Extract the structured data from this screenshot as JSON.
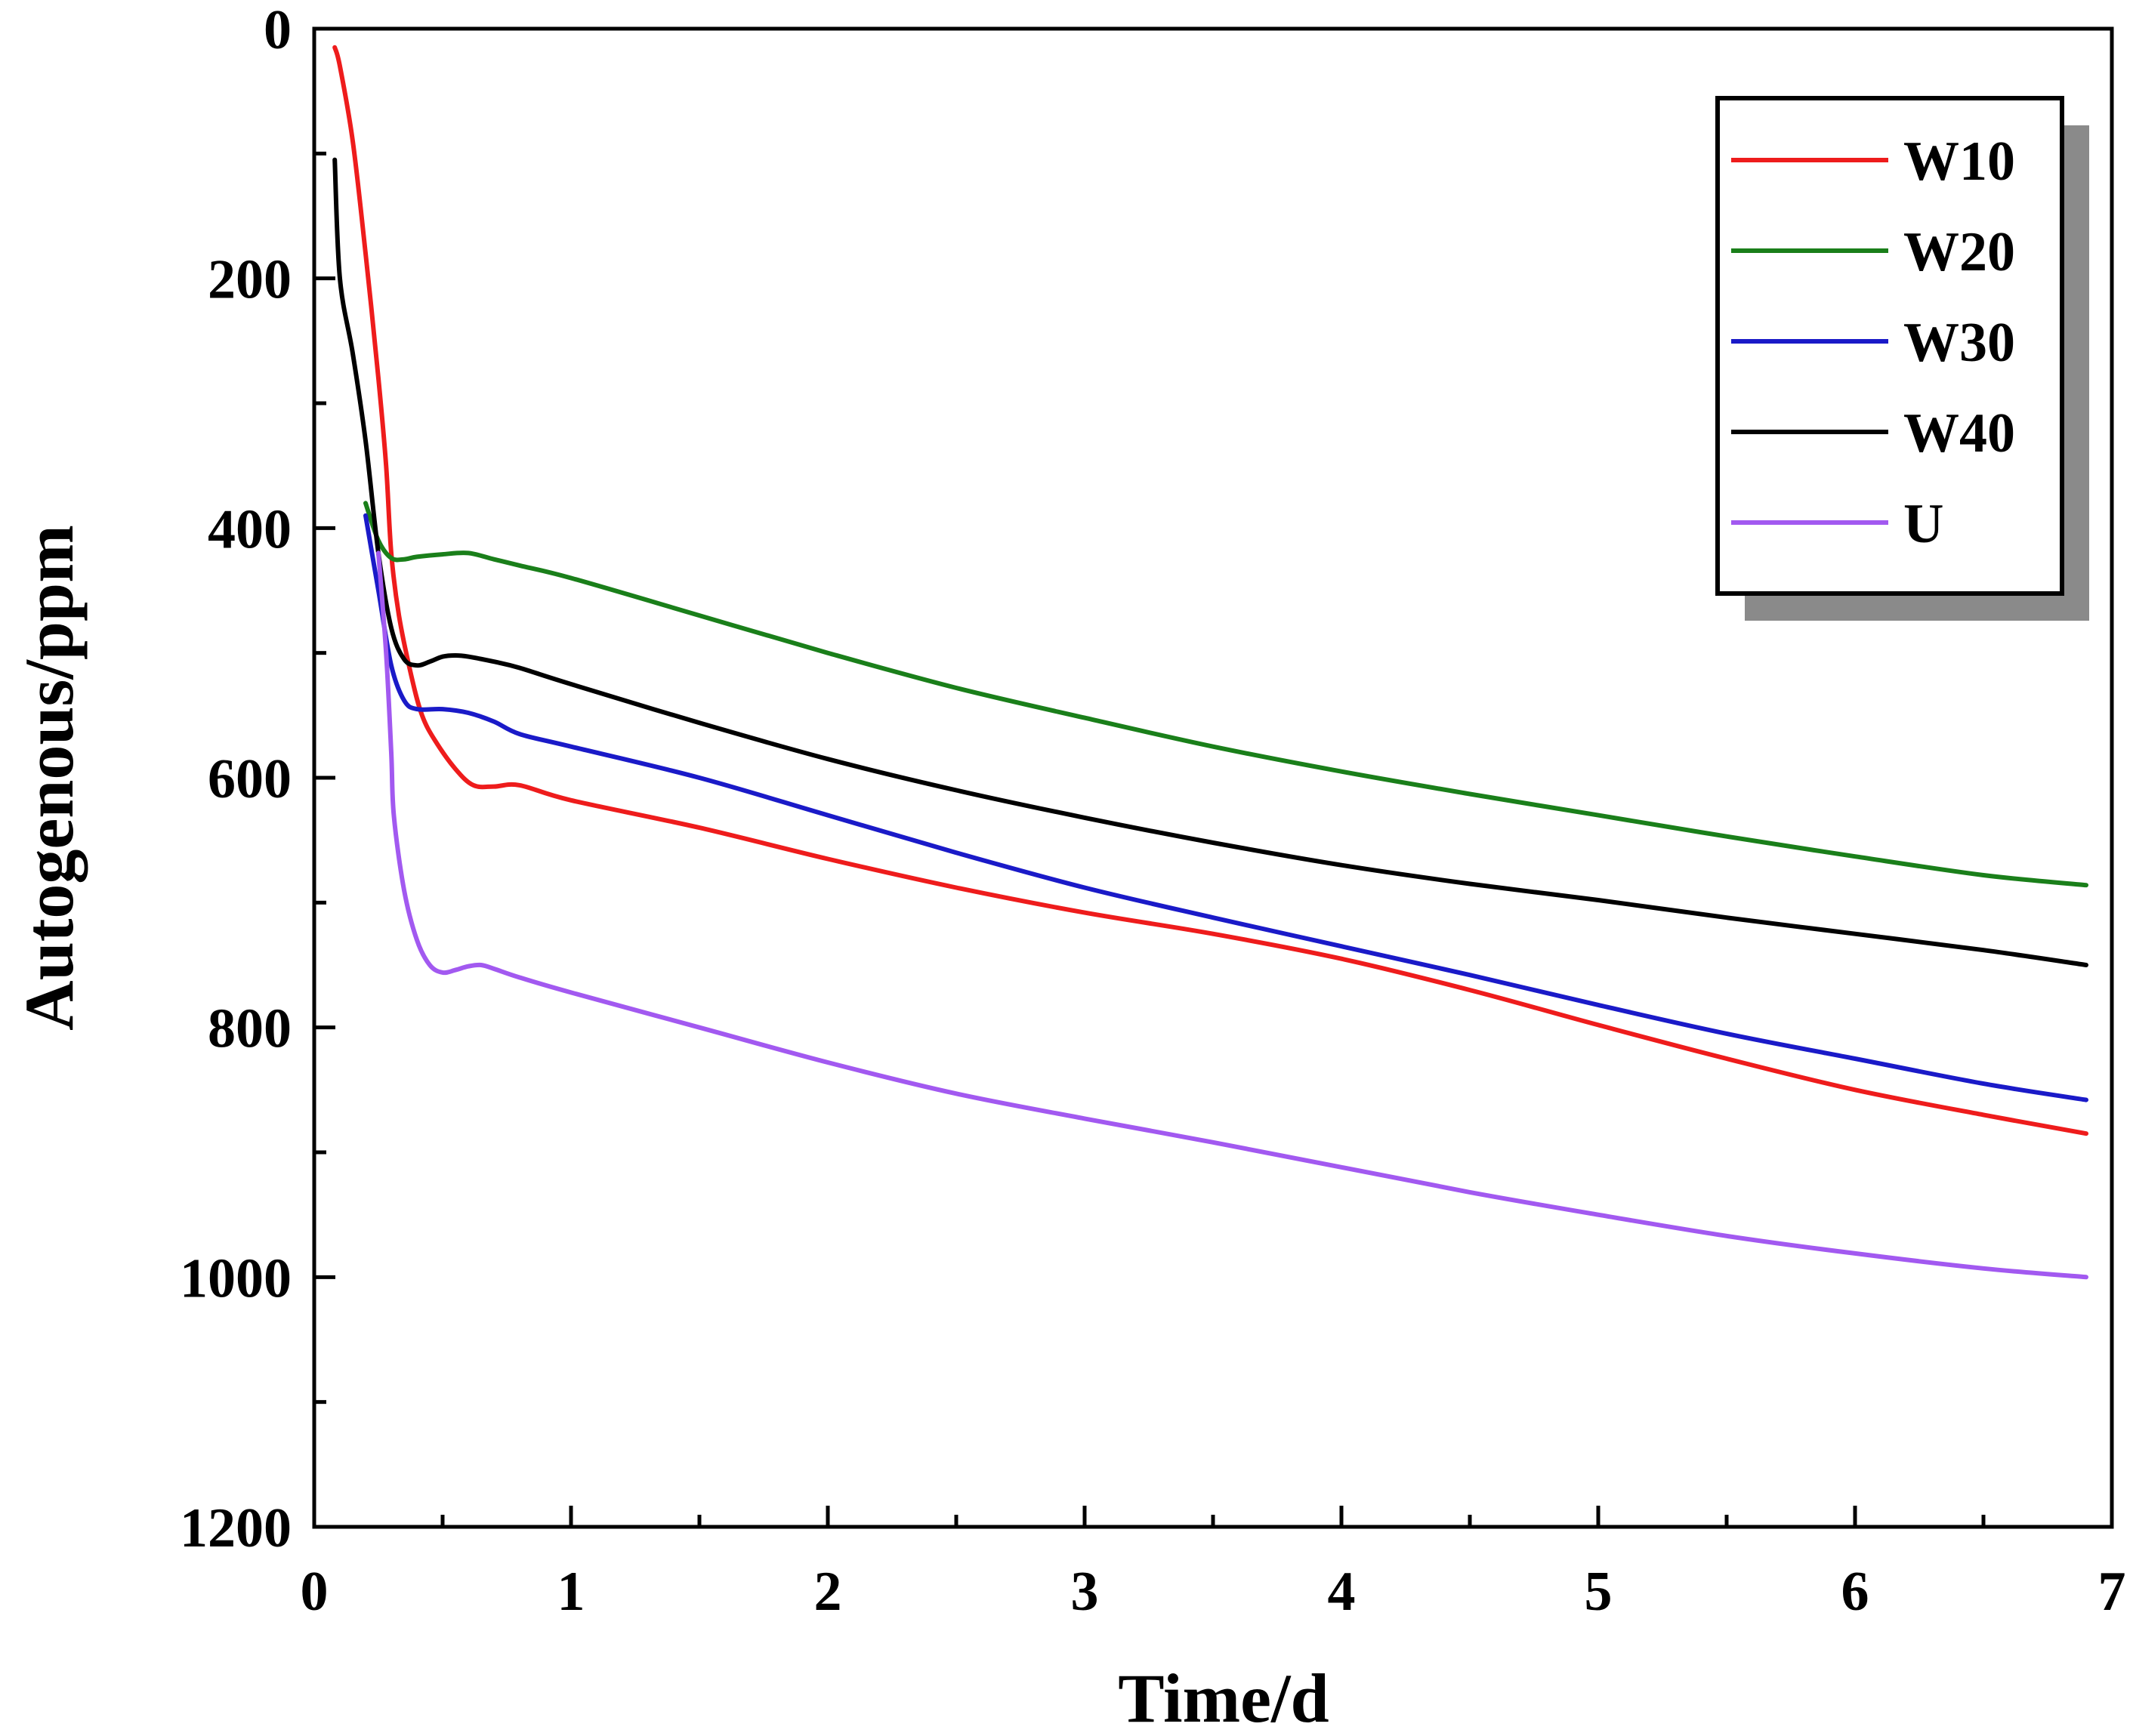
{
  "chart_data": {
    "type": "line",
    "title": "",
    "xlabel": "Time/d",
    "ylabel": "Autogenous/ppm",
    "xlim": [
      0,
      7
    ],
    "ylim": [
      0,
      1200
    ],
    "y_inverted": true,
    "x_ticks": [
      0,
      1,
      2,
      3,
      4,
      5,
      6,
      7
    ],
    "x_tick_labels": [
      "0",
      "1",
      "2",
      "3",
      "4",
      "5",
      "6",
      "7"
    ],
    "y_ticks": [
      0,
      200,
      400,
      600,
      800,
      1000,
      1200
    ],
    "y_tick_labels": [
      "0",
      "200",
      "400",
      "600",
      "800",
      "1000",
      "1200"
    ],
    "grid": false,
    "legend_position": "top-right",
    "series": [
      {
        "name": "W10",
        "color": "#ee1c1c",
        "x": [
          0.08,
          0.1,
          0.15,
          0.2,
          0.25,
          0.28,
          0.3,
          0.33,
          0.38,
          0.42,
          0.47,
          0.55,
          0.62,
          0.7,
          0.8,
          1.0,
          1.5,
          2.0,
          2.5,
          3.0,
          3.5,
          4.0,
          4.5,
          5.0,
          5.5,
          6.0,
          6.5,
          6.9
        ],
        "y": [
          15,
          30,
          90,
          180,
          280,
          350,
          420,
          470,
          520,
          550,
          570,
          593,
          606,
          607,
          606,
          618,
          640,
          665,
          688,
          708,
          725,
          745,
          770,
          798,
          825,
          850,
          870,
          885
        ]
      },
      {
        "name": "W20",
        "color": "#1a7f1a",
        "x": [
          0.2,
          0.25,
          0.3,
          0.35,
          0.4,
          0.5,
          0.6,
          0.7,
          0.8,
          1.0,
          1.5,
          2.0,
          2.5,
          3.0,
          3.5,
          4.0,
          4.5,
          5.0,
          5.5,
          6.0,
          6.5,
          6.9
        ],
        "y": [
          380,
          410,
          424,
          425,
          423,
          421,
          420,
          425,
          430,
          440,
          470,
          500,
          528,
          552,
          575,
          595,
          613,
          630,
          647,
          663,
          678,
          686
        ]
      },
      {
        "name": "W30",
        "color": "#1a1ac8",
        "x": [
          0.2,
          0.25,
          0.3,
          0.35,
          0.4,
          0.5,
          0.6,
          0.7,
          0.8,
          1.0,
          1.5,
          2.0,
          2.5,
          3.0,
          3.5,
          4.0,
          4.5,
          5.0,
          5.5,
          6.0,
          6.5,
          6.9
        ],
        "y": [
          390,
          450,
          510,
          538,
          545,
          545,
          548,
          555,
          565,
          575,
          600,
          630,
          660,
          688,
          712,
          735,
          758,
          782,
          805,
          825,
          845,
          858
        ]
      },
      {
        "name": "W40",
        "color": "#000000",
        "x": [
          0.08,
          0.1,
          0.15,
          0.2,
          0.25,
          0.3,
          0.35,
          0.4,
          0.45,
          0.5,
          0.55,
          0.6,
          0.7,
          0.8,
          1.0,
          1.5,
          2.0,
          2.5,
          3.0,
          3.5,
          4.0,
          4.5,
          5.0,
          5.5,
          6.0,
          6.5,
          6.9
        ],
        "y": [
          105,
          200,
          260,
          330,
          420,
          480,
          505,
          510,
          507,
          503,
          502,
          503,
          507,
          512,
          525,
          556,
          585,
          610,
          632,
          652,
          670,
          685,
          698,
          712,
          725,
          738,
          750
        ]
      },
      {
        "name": "U",
        "color": "#a259f0",
        "x": [
          0.25,
          0.28,
          0.3,
          0.31,
          0.35,
          0.4,
          0.45,
          0.5,
          0.55,
          0.6,
          0.65,
          0.7,
          0.8,
          1.0,
          1.5,
          2.0,
          2.5,
          3.0,
          3.5,
          4.0,
          4.5,
          5.0,
          5.5,
          6.0,
          6.5,
          6.9
        ],
        "y": [
          420,
          500,
          580,
          630,
          690,
          730,
          750,
          756,
          754,
          751,
          750,
          753,
          760,
          772,
          800,
          828,
          853,
          873,
          892,
          912,
          932,
          950,
          967,
          981,
          993,
          1000
        ]
      }
    ]
  }
}
